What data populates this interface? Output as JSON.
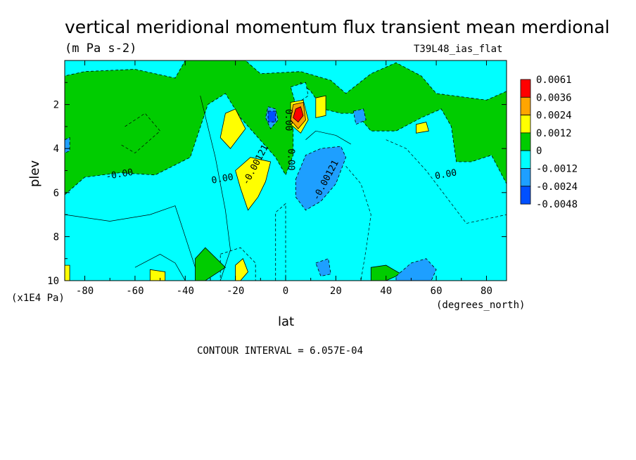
{
  "title": "vertical meridional momentum flux transient mean merdional",
  "units": "(m Pa s-2)",
  "run_label": "T39L48_ias_flat",
  "contour_interval": "CONTOUR INTERVAL = 6.057E-04",
  "colors": {
    "red": "#ff0000",
    "orange": "#ffa500",
    "yellow": "#ffff00",
    "green": "#00cc00",
    "cyan": "#00ffff",
    "lightblue": "#1e9fff",
    "blue": "#0050ff"
  },
  "chart_data": {
    "type": "heatmap",
    "title": "vertical meridional momentum flux transient mean merdional",
    "subtitle": "(m Pa s-2)",
    "xlabel": "lat",
    "xunits": "(degrees_north)",
    "ylabel": "plev",
    "yunits": "(x1E4 Pa)",
    "xlim": [
      -88,
      88
    ],
    "ylim": [
      10,
      0
    ],
    "x_ticks": [
      "-80",
      "-60",
      "-40",
      "-20",
      "0",
      "20",
      "40",
      "60",
      "80"
    ],
    "y_ticks": [
      "2",
      "4",
      "6",
      "8",
      "10"
    ],
    "legend": {
      "placement": "right",
      "labels": [
        "0.0061",
        "0.0036",
        "0.0024",
        "0.0012",
        "0",
        "-0.0012",
        "-0.0024",
        "-0.0048"
      ],
      "colors": [
        "#ff0000",
        "#ffa500",
        "#ffff00",
        "#00cc00",
        "#00ffff",
        "#1e9fff",
        "#0050ff"
      ]
    },
    "contour_labels": [
      {
        "text": "-0.00",
        "lat": -66,
        "plev": 5.3
      },
      {
        "text": "0.00",
        "lat": -25,
        "plev": 5.5
      },
      {
        "text": "-0.00121",
        "lat": -11,
        "plev": 4.8
      },
      {
        "text": "0.00",
        "lat": 1,
        "plev": 4.5
      },
      {
        "text": "-0.00121",
        "lat": 17,
        "plev": 5.5
      },
      {
        "text": "0.00",
        "lat": 64,
        "plev": 5.3
      },
      {
        "text": "0.00",
        "lat": 0,
        "plev": 2.7
      }
    ],
    "regions": [
      {
        "level": "0",
        "color": "green",
        "note": "background positive flux",
        "points": [
          [
            -88,
            0
          ],
          [
            88,
            0
          ],
          [
            88,
            10
          ],
          [
            -88,
            10
          ]
        ]
      },
      {
        "level": "-0.0012",
        "color": "cyan",
        "points": [
          [
            -88,
            6.1
          ],
          [
            -80,
            5.3
          ],
          [
            -66,
            5.1
          ],
          [
            -52,
            5.2
          ],
          [
            -38,
            4.4
          ],
          [
            -31,
            2.0
          ],
          [
            -24,
            1.5
          ],
          [
            -18,
            2.6
          ],
          [
            -11,
            3.5
          ],
          [
            -4,
            4.4
          ],
          [
            0,
            5.2
          ],
          [
            3,
            4.3
          ],
          [
            3,
            2.0
          ],
          [
            6,
            1.0
          ],
          [
            10,
            1.4
          ],
          [
            15,
            2.2
          ],
          [
            22,
            2.4
          ],
          [
            28,
            2.4
          ],
          [
            34,
            3.2
          ],
          [
            44,
            3.2
          ],
          [
            54,
            2.6
          ],
          [
            62,
            2.2
          ],
          [
            66,
            3.0
          ],
          [
            68,
            4.6
          ],
          [
            74,
            4.6
          ],
          [
            82,
            4.3
          ],
          [
            88,
            5.6
          ],
          [
            88,
            10
          ],
          [
            -4,
            10
          ],
          [
            -4,
            6.9
          ],
          [
            0,
            6.5
          ],
          [
            0,
            10
          ],
          [
            -88,
            10
          ]
        ]
      },
      {
        "level": "-0.0012",
        "color": "cyan",
        "points": [
          [
            -88,
            0
          ],
          [
            88,
            0
          ],
          [
            88,
            1.4
          ],
          [
            80,
            1.8
          ],
          [
            60,
            1.5
          ],
          [
            54,
            0.7
          ],
          [
            44,
            0.1
          ],
          [
            34,
            0.6
          ],
          [
            24,
            1.5
          ],
          [
            18,
            0.9
          ],
          [
            6,
            0.5
          ],
          [
            -10,
            0.6
          ],
          [
            -16,
            0.0
          ],
          [
            -40,
            0.0
          ],
          [
            -44,
            0.8
          ],
          [
            -60,
            0.4
          ],
          [
            -80,
            0.5
          ],
          [
            -88,
            0.7
          ]
        ]
      },
      {
        "level": "-0.0012",
        "color": "cyan",
        "points": [
          [
            -26,
            8.8
          ],
          [
            -18,
            8.5
          ],
          [
            -12,
            9.2
          ],
          [
            -12,
            10
          ],
          [
            -26,
            10
          ]
        ]
      },
      {
        "level": "-0.0012",
        "color": "cyan",
        "points": [
          [
            2,
            1.2
          ],
          [
            8,
            1.0
          ],
          [
            9,
            1.6
          ],
          [
            4,
            2.0
          ]
        ]
      },
      {
        "level": "0",
        "color": "green",
        "points": [
          [
            -36,
            9.0
          ],
          [
            -32,
            8.5
          ],
          [
            -24,
            9.4
          ],
          [
            -32,
            10
          ],
          [
            -36,
            10
          ]
        ]
      },
      {
        "level": "0",
        "color": "green",
        "points": [
          [
            34,
            9.4
          ],
          [
            40,
            9.3
          ],
          [
            46,
            9.7
          ],
          [
            40,
            10
          ],
          [
            34,
            10
          ]
        ]
      },
      {
        "level": "0.0012",
        "color": "yellow",
        "points": [
          [
            -24,
            2.4
          ],
          [
            -20,
            2.2
          ],
          [
            -16,
            3.1
          ],
          [
            -22,
            4.0
          ],
          [
            -26,
            3.5
          ]
        ]
      },
      {
        "level": "0.0012",
        "color": "yellow",
        "points": [
          [
            -20,
            5.0
          ],
          [
            -14,
            4.4
          ],
          [
            -6,
            4.6
          ],
          [
            -8,
            5.5
          ],
          [
            -11,
            6.2
          ],
          [
            -15,
            6.8
          ],
          [
            -18,
            5.8
          ]
        ]
      },
      {
        "level": "0.0012",
        "color": "yellow",
        "points": [
          [
            -20,
            9.3
          ],
          [
            -17,
            9.0
          ],
          [
            -15,
            9.6
          ],
          [
            -18,
            10
          ],
          [
            -20,
            10
          ]
        ]
      },
      {
        "level": "0.0012",
        "color": "yellow",
        "points": [
          [
            -54,
            9.5
          ],
          [
            -48,
            9.6
          ],
          [
            -48,
            10
          ],
          [
            -54,
            10
          ]
        ]
      },
      {
        "level": "0.0012",
        "color": "yellow",
        "points": [
          [
            -88,
            9.3
          ],
          [
            -86,
            9.3
          ],
          [
            -86,
            10
          ],
          [
            -88,
            10
          ]
        ]
      },
      {
        "level": "0.0012",
        "color": "yellow",
        "points": [
          [
            12,
            1.7
          ],
          [
            16,
            1.6
          ],
          [
            16,
            2.5
          ],
          [
            12,
            2.6
          ]
        ]
      },
      {
        "level": "0.0012",
        "color": "yellow",
        "points": [
          [
            52,
            2.9
          ],
          [
            56,
            2.8
          ],
          [
            57,
            3.2
          ],
          [
            52,
            3.3
          ]
        ]
      },
      {
        "level": "0.0012",
        "color": "yellow",
        "points": [
          [
            2,
            1.9
          ],
          [
            7,
            1.8
          ],
          [
            9,
            2.7
          ],
          [
            6,
            3.3
          ],
          [
            2,
            2.9
          ]
        ]
      },
      {
        "level": "0.0024",
        "color": "orange",
        "points": [
          [
            3,
            2.0
          ],
          [
            7,
            1.9
          ],
          [
            8,
            2.7
          ],
          [
            5,
            3.1
          ],
          [
            2,
            2.7
          ]
        ]
      },
      {
        "level": "0.0036",
        "color": "red",
        "points": [
          [
            4,
            2.2
          ],
          [
            6,
            2.1
          ],
          [
            7,
            2.5
          ],
          [
            5,
            2.8
          ],
          [
            3,
            2.6
          ]
        ]
      },
      {
        "level": "-0.0024",
        "color": "lightblue",
        "points": [
          [
            -7,
            2.1
          ],
          [
            -4,
            2.2
          ],
          [
            -3,
            2.7
          ],
          [
            -6,
            3.1
          ],
          [
            -8,
            2.6
          ]
        ]
      },
      {
        "level": "-0.0024",
        "color": "lightblue",
        "points": [
          [
            4,
            5.4
          ],
          [
            8,
            4.3
          ],
          [
            14,
            4.0
          ],
          [
            22,
            3.9
          ],
          [
            24,
            4.4
          ],
          [
            20,
            5.6
          ],
          [
            14,
            6.4
          ],
          [
            8,
            6.8
          ],
          [
            4,
            6.2
          ]
        ]
      },
      {
        "level": "-0.0024",
        "color": "lightblue",
        "points": [
          [
            27,
            2.3
          ],
          [
            31,
            2.2
          ],
          [
            32,
            2.7
          ],
          [
            28,
            2.9
          ]
        ]
      },
      {
        "level": "-0.0024",
        "color": "lightblue",
        "points": [
          [
            -88,
            3.6
          ],
          [
            -86,
            3.5
          ],
          [
            -86,
            4.1
          ],
          [
            -88,
            4.2
          ]
        ]
      },
      {
        "level": "-0.0024",
        "color": "lightblue",
        "points": [
          [
            12,
            9.2
          ],
          [
            17,
            9.0
          ],
          [
            18,
            9.7
          ],
          [
            14,
            9.8
          ]
        ]
      },
      {
        "level": "-0.0024",
        "color": "lightblue",
        "points": [
          [
            44,
            9.8
          ],
          [
            50,
            9.2
          ],
          [
            56,
            9.0
          ],
          [
            60,
            9.5
          ],
          [
            58,
            10
          ],
          [
            44,
            10
          ]
        ]
      },
      {
        "level": "-0.0048",
        "color": "blue",
        "points": [
          [
            -7,
            2.3
          ],
          [
            -4,
            2.3
          ],
          [
            -4,
            2.8
          ],
          [
            -7,
            2.8
          ]
        ]
      }
    ]
  }
}
